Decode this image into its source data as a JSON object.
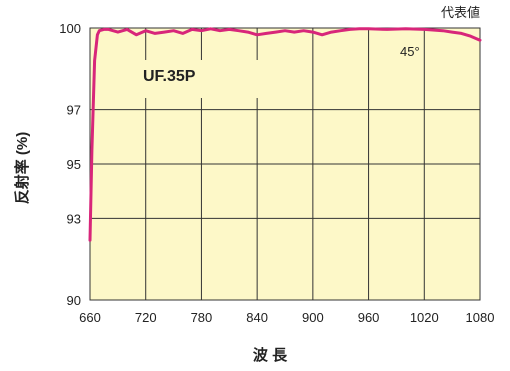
{
  "chart_data": {
    "type": "line",
    "representative_label": "代表値",
    "product_label": "UF.35P",
    "angle_label": "45°",
    "xlabel": "波 長",
    "ylabel": "反射率 (%)",
    "xlim": [
      660,
      1080
    ],
    "ylim": [
      90,
      100
    ],
    "xticks": [
      660,
      720,
      780,
      840,
      900,
      960,
      1020,
      1080
    ],
    "yticks": [
      90,
      93,
      95,
      97,
      100
    ],
    "plot_bg": "#fdf8c8",
    "line_color": "#d8267a",
    "grid": true,
    "series": [
      {
        "x": [
          660,
          662,
          665,
          668,
          670,
          675,
          680,
          690,
          700,
          710,
          720,
          730,
          740,
          750,
          760,
          770,
          780,
          790,
          800,
          810,
          820,
          830,
          840,
          850,
          860,
          870,
          880,
          890,
          900,
          910,
          920,
          930,
          940,
          950,
          960,
          980,
          1000,
          1020,
          1040,
          1050,
          1060,
          1070,
          1080
        ],
        "y": [
          92.2,
          95.5,
          98.8,
          99.75,
          99.9,
          99.95,
          99.95,
          99.85,
          99.95,
          99.75,
          99.9,
          99.8,
          99.85,
          99.9,
          99.8,
          99.95,
          99.9,
          99.97,
          99.9,
          99.95,
          99.9,
          99.85,
          99.75,
          99.8,
          99.85,
          99.9,
          99.85,
          99.9,
          99.85,
          99.75,
          99.85,
          99.9,
          99.95,
          99.97,
          99.97,
          99.95,
          99.97,
          99.95,
          99.9,
          99.85,
          99.8,
          99.7,
          99.55
        ]
      }
    ]
  }
}
